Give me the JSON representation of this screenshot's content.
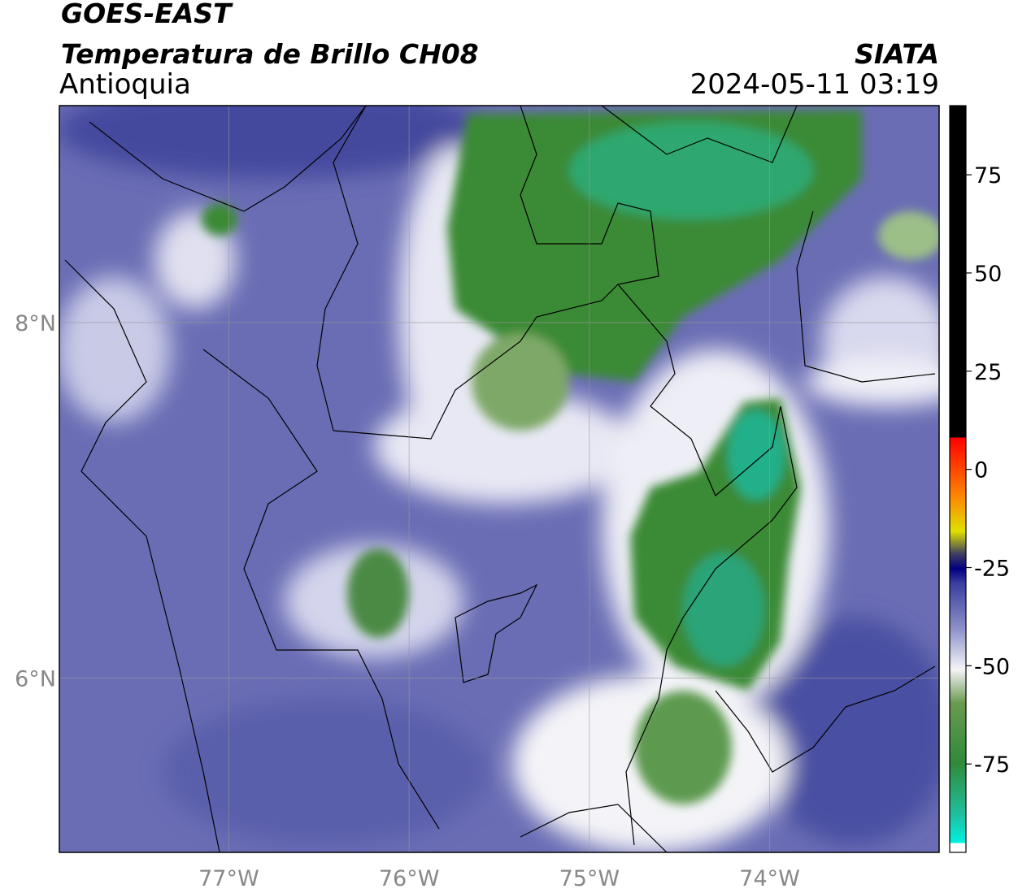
{
  "header": {
    "satellite": "GOES-EAST",
    "product": "Temperatura de Brillo CH08",
    "region": "Antioquia",
    "agency": "SIATA",
    "datetime": "2024-05-11 03:19"
  },
  "map": {
    "xlim": [
      -77.94,
      -73.06
    ],
    "ylim": [
      5.02,
      9.22
    ],
    "xticks": [
      {
        "value": -77,
        "label": "77°W"
      },
      {
        "value": -76,
        "label": "76°W"
      },
      {
        "value": -75,
        "label": "75°W"
      },
      {
        "value": -74,
        "label": "74°W"
      }
    ],
    "yticks": [
      {
        "value": 6,
        "label": "6°N"
      },
      {
        "value": 8,
        "label": "8°N"
      }
    ]
  },
  "colorbar": {
    "lim": [
      -97.5,
      92.6
    ],
    "ticks": [
      -75,
      -50,
      -25,
      0,
      25,
      50,
      75
    ]
  }
}
